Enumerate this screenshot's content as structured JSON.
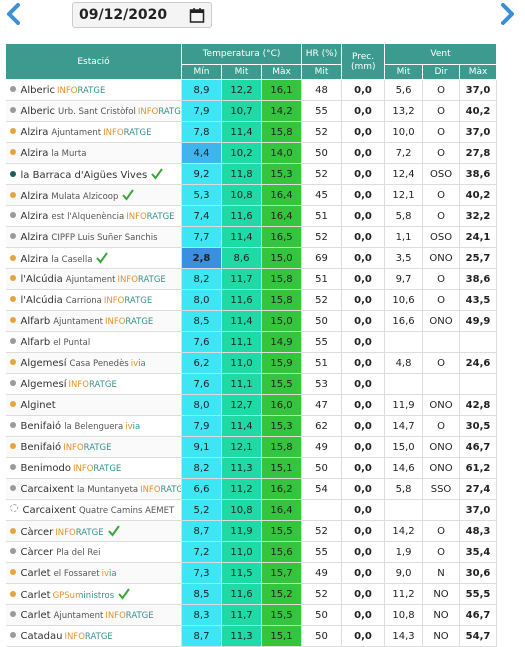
{
  "date": "09/12/2020",
  "header": {
    "station": "Estació",
    "temp": "Temperatura (°C)",
    "hr": "HR (%)",
    "prec": "Prec. (mm)",
    "wind": "Vent",
    "sub": [
      "Mín",
      "Mit",
      "Màx",
      "Mit",
      "Mit",
      "Dir",
      "Màx"
    ]
  },
  "rows": [
    {
      "name": "Alberic",
      "sub": null,
      "tag": "INFORATGE",
      "dot": "#9a9a9a",
      "check": false,
      "values": [
        "8,9",
        "12,2",
        "16,1",
        "48",
        "0,0",
        "5,6",
        "O",
        "37,0"
      ]
    },
    {
      "name": "Alberic",
      "sub": "Urb. Sant Cristòfol",
      "tag": "INFORATGE",
      "dot": "#9a9a9a",
      "check": false,
      "values": [
        "7,9",
        "10,7",
        "14,2",
        "55",
        "0,0",
        "13,2",
        "O",
        "40,2"
      ]
    },
    {
      "name": "Alzira",
      "sub": "Ajuntament",
      "tag": "INFORATGE",
      "dot": "#e8a33a",
      "check": false,
      "values": [
        "7,8",
        "11,4",
        "15,8",
        "52",
        "0,0",
        "10,0",
        "O",
        "37,0"
      ]
    },
    {
      "name": "Alzira",
      "sub": "la Murta",
      "tag": null,
      "dot": "#e8a33a",
      "check": false,
      "values": [
        "4,4",
        "10,2",
        "14,0",
        "50",
        "0,0",
        "7,2",
        "O",
        "27,8"
      ]
    },
    {
      "name": "la Barraca d'Aigües Vives",
      "sub": null,
      "tag": null,
      "dot": "#1c5e5e",
      "check": true,
      "values": [
        "9,2",
        "11,8",
        "15,3",
        "52",
        "0,0",
        "12,4",
        "OSO",
        "38,6"
      ]
    },
    {
      "name": "Alzira",
      "sub": "Mulata Alzicoop",
      "tag": null,
      "dot": "#e8a33a",
      "check": true,
      "values": [
        "5,3",
        "10,8",
        "16,4",
        "45",
        "0,0",
        "12,1",
        "O",
        "40,2"
      ]
    },
    {
      "name": "Alzira",
      "sub": "est l'Alquenència",
      "tag": "INFORATGE",
      "dot": "#9a9a9a",
      "check": false,
      "values": [
        "7,4",
        "11,6",
        "16,4",
        "51",
        "0,0",
        "5,8",
        "O",
        "32,2"
      ]
    },
    {
      "name": "Alzira",
      "sub": "CIPFP Luis Suñer Sanchis",
      "tag": null,
      "dot": "#9a9a9a",
      "check": false,
      "values": [
        "7,7",
        "11,4",
        "16,5",
        "52",
        "0,0",
        "1,1",
        "OSO",
        "24,1"
      ]
    },
    {
      "name": "Alzira",
      "sub": "la Casella",
      "tag": null,
      "dot": "#e8a33a",
      "check": true,
      "values": [
        "2,8",
        "8,6",
        "15,0",
        "69",
        "0,0",
        "3,5",
        "ONO",
        "25,7"
      ]
    },
    {
      "name": "l'Alcúdia",
      "sub": "Ajuntament",
      "tag": "INFORATGE",
      "dot": "#e8a33a",
      "check": false,
      "values": [
        "8,2",
        "11,7",
        "15,8",
        "51",
        "0,0",
        "9,7",
        "O",
        "38,6"
      ]
    },
    {
      "name": "l'Alcúdia",
      "sub": "Carriona",
      "tag": "INFORATGE",
      "dot": "#e8a33a",
      "check": false,
      "values": [
        "8,0",
        "11,6",
        "15,8",
        "52",
        "0,0",
        "10,6",
        "O",
        "43,5"
      ]
    },
    {
      "name": "Alfarb",
      "sub": "Ajuntament",
      "tag": "INFORATGE",
      "dot": "#e8a33a",
      "check": false,
      "values": [
        "8,5",
        "11,4",
        "15,0",
        "50",
        "0,0",
        "16,6",
        "ONO",
        "49,9"
      ]
    },
    {
      "name": "Alfarb",
      "sub": "el Puntal",
      "tag": null,
      "dot": "#9a9a9a",
      "check": false,
      "values": [
        "7,6",
        "11,1",
        "14,9",
        "55",
        "0,0",
        null,
        null,
        null
      ]
    },
    {
      "name": "Algemesí",
      "sub": "Casa Penedès",
      "tag": "ivia",
      "dot": "#e8a33a",
      "check": false,
      "values": [
        "6,2",
        "11,0",
        "15,9",
        "51",
        "0,0",
        "4,8",
        "O",
        "24,6"
      ]
    },
    {
      "name": "Algemesí",
      "sub": null,
      "tag": "INFORATGE",
      "dot": "#9a9a9a",
      "check": false,
      "values": [
        "7,6",
        "11,1",
        "15,5",
        "53",
        "0,0",
        null,
        null,
        null
      ]
    },
    {
      "name": "Alginet",
      "sub": null,
      "tag": null,
      "dot": "#e8a33a",
      "check": false,
      "values": [
        "8,0",
        "12,7",
        "16,0",
        "47",
        "0,0",
        "11,9",
        "ONO",
        "42,8"
      ]
    },
    {
      "name": "Benifaió",
      "sub": "la Belenguera",
      "tag": "ivia",
      "dot": "#9a9a9a",
      "check": false,
      "values": [
        "7,9",
        "11,4",
        "15,3",
        "62",
        "0,0",
        "14,7",
        "O",
        "30,5"
      ]
    },
    {
      "name": "Benifaió",
      "sub": null,
      "tag": "INFORATGE",
      "dot": "#e8a33a",
      "check": false,
      "values": [
        "9,1",
        "12,1",
        "15,8",
        "49",
        "0,0",
        "15,0",
        "ONO",
        "46,7"
      ]
    },
    {
      "name": "Benimodo",
      "sub": null,
      "tag": "INFORATGE",
      "dot": "#9a9a9a",
      "check": false,
      "values": [
        "8,2",
        "11,3",
        "15,1",
        "50",
        "0,0",
        "14,6",
        "ONO",
        "61,2"
      ]
    },
    {
      "name": "Carcaixent",
      "sub": "la Muntanyeta",
      "tag": "INFORATGE",
      "dot": "#9a9a9a",
      "check": false,
      "values": [
        "6,6",
        "11,2",
        "16,2",
        "54",
        "0,0",
        "5,8",
        "SSO",
        "27,4"
      ]
    },
    {
      "name": "Carcaixent",
      "sub": "Quatre Camins AEMET",
      "tag": null,
      "dot": null,
      "check": false,
      "values": [
        "5,2",
        "10,8",
        "16,4",
        null,
        "0,0",
        null,
        null,
        "37,0"
      ]
    },
    {
      "name": "Càrcer",
      "sub": null,
      "tag": "INFORATGE",
      "dot": "#e8a33a",
      "check": true,
      "values": [
        "8,7",
        "11,9",
        "15,5",
        "52",
        "0,0",
        "14,2",
        "O",
        "48,3"
      ]
    },
    {
      "name": "Càrcer",
      "sub": "Pla del Rei",
      "tag": null,
      "dot": "#9a9a9a",
      "check": false,
      "values": [
        "7,2",
        "11,0",
        "15,6",
        "55",
        "0,0",
        "1,9",
        "O",
        "35,4"
      ]
    },
    {
      "name": "Carlet",
      "sub": "el Fossaret",
      "tag": "ivia",
      "dot": "#e8a33a",
      "check": false,
      "values": [
        "7,3",
        "11,5",
        "15,7",
        "49",
        "0,0",
        "9,0",
        "N",
        "30,6"
      ]
    },
    {
      "name": "Carlet",
      "sub": null,
      "tag": "GPSuministros",
      "dot": "#e8a33a",
      "check": true,
      "values": [
        "8,5",
        "11,6",
        "15,2",
        "52",
        "0,0",
        "11,2",
        "NO",
        "55,5"
      ]
    },
    {
      "name": "Carlet",
      "sub": "Ajuntament",
      "tag": "INFORATGE",
      "dot": "#9a9a9a",
      "check": false,
      "values": [
        "8,3",
        "11,7",
        "15,5",
        "50",
        "0,0",
        "10,8",
        "NO",
        "46,7"
      ]
    },
    {
      "name": "Catadau",
      "sub": null,
      "tag": "INFORATGE",
      "dot": "#9a9a9a",
      "check": false,
      "values": [
        "8,7",
        "11,3",
        "15,1",
        "50",
        "0,0",
        "14,3",
        "NO",
        "54,7"
      ]
    }
  ]
}
